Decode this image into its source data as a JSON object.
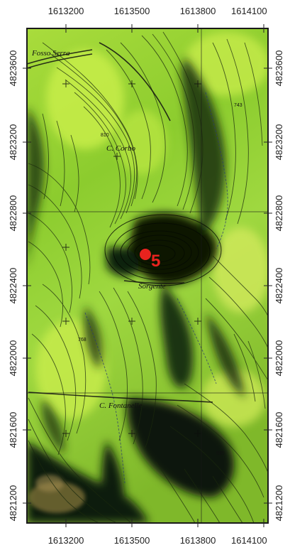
{
  "map": {
    "x_ticks": [
      "1613200",
      "1613500",
      "1613800",
      "1614100"
    ],
    "y_ticks": [
      "4823600",
      "4823200",
      "4822800",
      "4822400",
      "4822000",
      "4821600",
      "4821200"
    ],
    "marker": {
      "label": "5",
      "color": "#e8231e"
    },
    "place_labels": [
      "Fosso Serra",
      "C. Corbo",
      "Sorgente",
      "C. Fontanelle"
    ],
    "spot_heights": [
      "810",
      "743",
      "768",
      "685"
    ],
    "colors": {
      "terrain_light": "#b9e63a",
      "terrain_mid": "#7fc62a",
      "terrain_dark": "#0f1a08",
      "frame": "#1a1a1a"
    }
  }
}
